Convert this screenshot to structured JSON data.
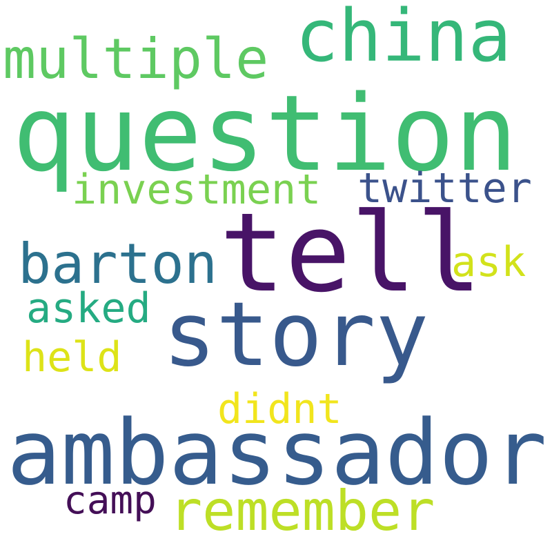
{
  "words": [
    {
      "id": "question",
      "text": "question",
      "color": "#40BD72"
    },
    {
      "id": "tell",
      "text": "tell",
      "color": "#481467"
    },
    {
      "id": "ambassador",
      "text": "ambassador",
      "color": "#365C8D"
    },
    {
      "id": "story",
      "text": "story",
      "color": "#38598C"
    },
    {
      "id": "china",
      "text": "china",
      "color": "#35B779"
    },
    {
      "id": "multiple",
      "text": "multiple",
      "color": "#5EC962"
    },
    {
      "id": "barton",
      "text": "barton",
      "color": "#2C718E"
    },
    {
      "id": "remember",
      "text": "remember",
      "color": "#BDDF26"
    },
    {
      "id": "investment",
      "text": "investment",
      "color": "#7AD151"
    },
    {
      "id": "twitter",
      "text": "twitter",
      "color": "#3B528B"
    },
    {
      "id": "ask",
      "text": "ask",
      "color": "#D2E21B"
    },
    {
      "id": "asked",
      "text": "asked",
      "color": "#25AB82"
    },
    {
      "id": "held",
      "text": "held",
      "color": "#DDE318"
    },
    {
      "id": "didnt",
      "text": "didnt",
      "color": "#F1E51D"
    },
    {
      "id": "camp",
      "text": "camp",
      "color": "#440F57"
    }
  ]
}
